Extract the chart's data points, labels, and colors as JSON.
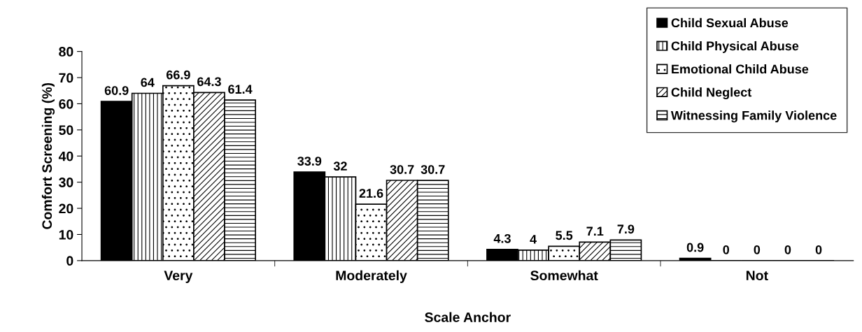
{
  "chart_data": {
    "type": "bar",
    "xlabel": "Scale Anchor",
    "ylabel": "Comfort Screening (%)",
    "categories": [
      "Very",
      "Moderately",
      "Somewhat",
      "Not"
    ],
    "series": [
      {
        "name": "Child Sexual Abuse",
        "color": "#000000",
        "values": [
          60.9,
          33.9,
          4.3,
          0.9
        ]
      },
      {
        "name": "Child Physical Abuse",
        "color": "#000000",
        "values": [
          64,
          32,
          4,
          0
        ]
      },
      {
        "name": "Emotional Child Abuse",
        "color": "#000000",
        "values": [
          66.9,
          21.6,
          5.5,
          0
        ]
      },
      {
        "name": "Child Neglect",
        "color": "#000000",
        "values": [
          64.3,
          30.7,
          7.1,
          0
        ]
      },
      {
        "name": "Witnessing Family Violence",
        "color": "#000000",
        "values": [
          61.4,
          30.7,
          7.9,
          0
        ]
      }
    ],
    "ylim": [
      0,
      80
    ],
    "yticks": [
      0,
      10,
      20,
      30,
      40,
      50,
      60,
      70,
      80
    ],
    "data_labels": true,
    "grid": false,
    "legend": "top right"
  }
}
